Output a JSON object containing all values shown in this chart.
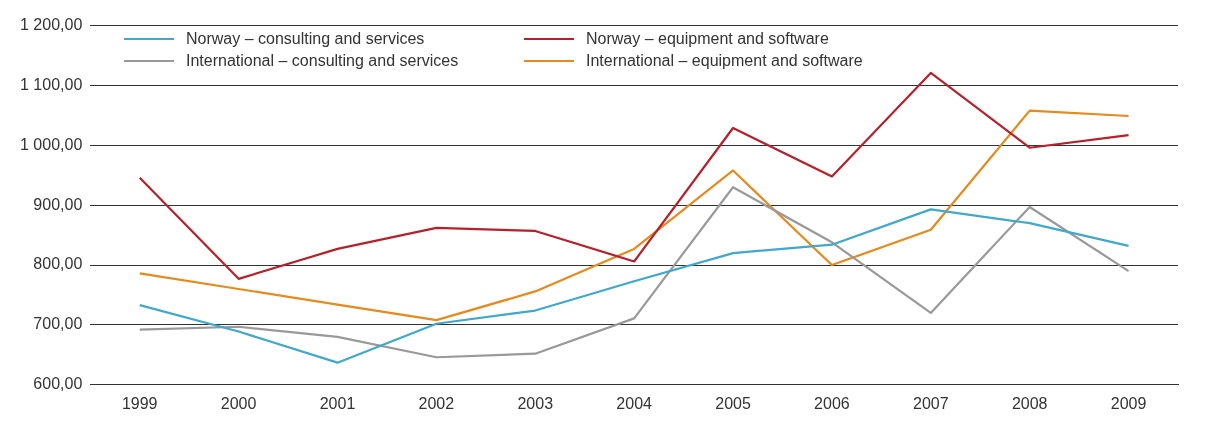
{
  "chart_data": {
    "type": "line",
    "categories": [
      "1999",
      "2000",
      "2001",
      "2002",
      "2003",
      "2004",
      "2005",
      "2006",
      "2007",
      "2008",
      "2009"
    ],
    "series": [
      {
        "name": "Norway – consulting and services",
        "color": "#41a8cc",
        "values": [
          733,
          689,
          637,
          702,
          724,
          773,
          820,
          834,
          893,
          870,
          832
        ]
      },
      {
        "name": "Norway – equipment and software",
        "color": "#b5212a",
        "values": [
          946,
          777,
          827,
          862,
          857,
          806,
          1029,
          948,
          1121,
          996,
          1017
        ]
      },
      {
        "name": "International – consulting and services",
        "color": "#999999",
        "values": [
          692,
          697,
          680,
          646,
          652,
          711,
          930,
          838,
          720,
          897,
          790
        ]
      },
      {
        "name": "International – equipment and software",
        "color": "#e68a1e",
        "values": [
          786,
          760,
          734,
          708,
          756,
          827,
          958,
          800,
          859,
          1058,
          1049
        ]
      }
    ],
    "ylim": [
      600,
      1200
    ],
    "yticks": [
      {
        "value": 600,
        "label": "600,00"
      },
      {
        "value": 700,
        "label": "700,00"
      },
      {
        "value": 800,
        "label": "800,00"
      },
      {
        "value": 900,
        "label": "900,00"
      },
      {
        "value": 1000,
        "label": "1 000,00"
      },
      {
        "value": 1100,
        "label": "1 100,00"
      },
      {
        "value": 1200,
        "label": "1 200,00"
      }
    ],
    "grid": "y",
    "legend": "top left",
    "marker": "none",
    "line_style": "solid"
  }
}
